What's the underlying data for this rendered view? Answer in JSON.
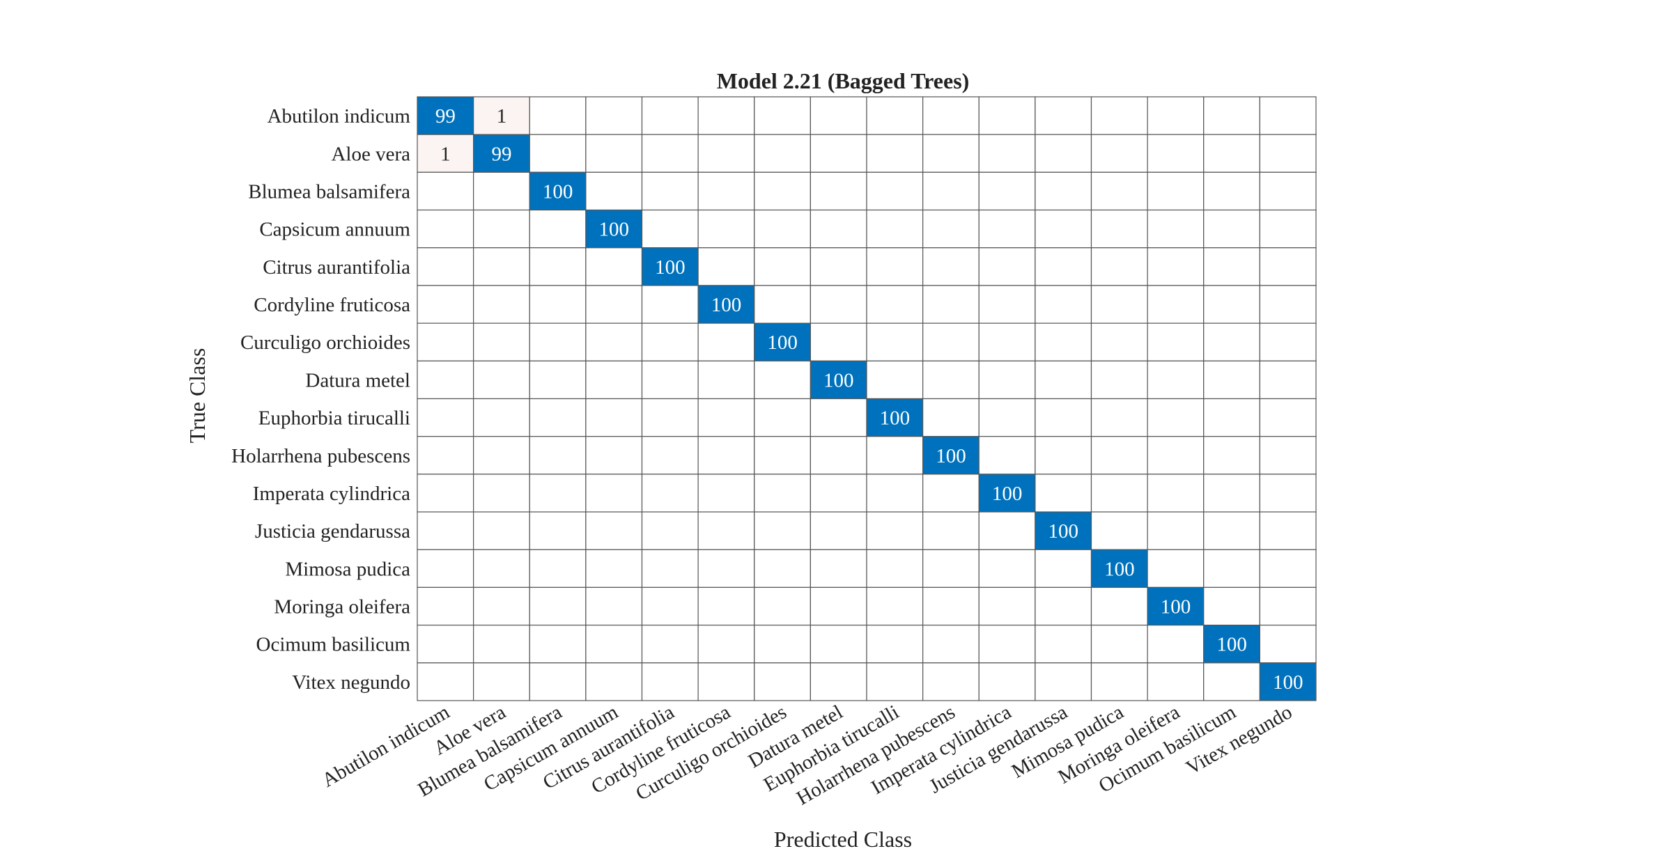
{
  "chart_data": {
    "type": "heatmap",
    "title": "Model 2.21 (Bagged Trees)",
    "xlabel": "Predicted Class",
    "ylabel": "True Class",
    "classes": [
      "Abutilon indicum",
      "Aloe vera",
      "Blumea balsamifera",
      "Capsicum annuum",
      "Citrus aurantifolia",
      "Cordyline fruticosa",
      "Curculigo orchioides",
      "Datura metel",
      "Euphorbia tirucalli",
      "Holarrhena pubescens",
      "Imperata cylindrica",
      "Justicia gendarussa",
      "Mimosa pudica",
      "Moringa oleifera",
      "Ocimum basilicum",
      "Vitex negundo"
    ],
    "matrix": [
      [
        99,
        1,
        0,
        0,
        0,
        0,
        0,
        0,
        0,
        0,
        0,
        0,
        0,
        0,
        0,
        0
      ],
      [
        1,
        99,
        0,
        0,
        0,
        0,
        0,
        0,
        0,
        0,
        0,
        0,
        0,
        0,
        0,
        0
      ],
      [
        0,
        0,
        100,
        0,
        0,
        0,
        0,
        0,
        0,
        0,
        0,
        0,
        0,
        0,
        0,
        0
      ],
      [
        0,
        0,
        0,
        100,
        0,
        0,
        0,
        0,
        0,
        0,
        0,
        0,
        0,
        0,
        0,
        0
      ],
      [
        0,
        0,
        0,
        0,
        100,
        0,
        0,
        0,
        0,
        0,
        0,
        0,
        0,
        0,
        0,
        0
      ],
      [
        0,
        0,
        0,
        0,
        0,
        100,
        0,
        0,
        0,
        0,
        0,
        0,
        0,
        0,
        0,
        0
      ],
      [
        0,
        0,
        0,
        0,
        0,
        0,
        100,
        0,
        0,
        0,
        0,
        0,
        0,
        0,
        0,
        0
      ],
      [
        0,
        0,
        0,
        0,
        0,
        0,
        0,
        100,
        0,
        0,
        0,
        0,
        0,
        0,
        0,
        0
      ],
      [
        0,
        0,
        0,
        0,
        0,
        0,
        0,
        0,
        100,
        0,
        0,
        0,
        0,
        0,
        0,
        0
      ],
      [
        0,
        0,
        0,
        0,
        0,
        0,
        0,
        0,
        0,
        100,
        0,
        0,
        0,
        0,
        0,
        0
      ],
      [
        0,
        0,
        0,
        0,
        0,
        0,
        0,
        0,
        0,
        0,
        100,
        0,
        0,
        0,
        0,
        0
      ],
      [
        0,
        0,
        0,
        0,
        0,
        0,
        0,
        0,
        0,
        0,
        0,
        100,
        0,
        0,
        0,
        0
      ],
      [
        0,
        0,
        0,
        0,
        0,
        0,
        0,
        0,
        0,
        0,
        0,
        0,
        100,
        0,
        0,
        0
      ],
      [
        0,
        0,
        0,
        0,
        0,
        0,
        0,
        0,
        0,
        0,
        0,
        0,
        0,
        100,
        0,
        0
      ],
      [
        0,
        0,
        0,
        0,
        0,
        0,
        0,
        0,
        0,
        0,
        0,
        0,
        0,
        0,
        100,
        0
      ],
      [
        0,
        0,
        0,
        0,
        0,
        0,
        0,
        0,
        0,
        0,
        0,
        0,
        0,
        0,
        0,
        100
      ]
    ],
    "colors": {
      "diagonal": "#0072BD",
      "off_diagonal": "#FCF4F2",
      "empty": "#FFFFFF",
      "grid": "#555555",
      "diagonal_text": "#FFFFFF",
      "off_diagonal_text": "#222222"
    },
    "grid": true
  }
}
